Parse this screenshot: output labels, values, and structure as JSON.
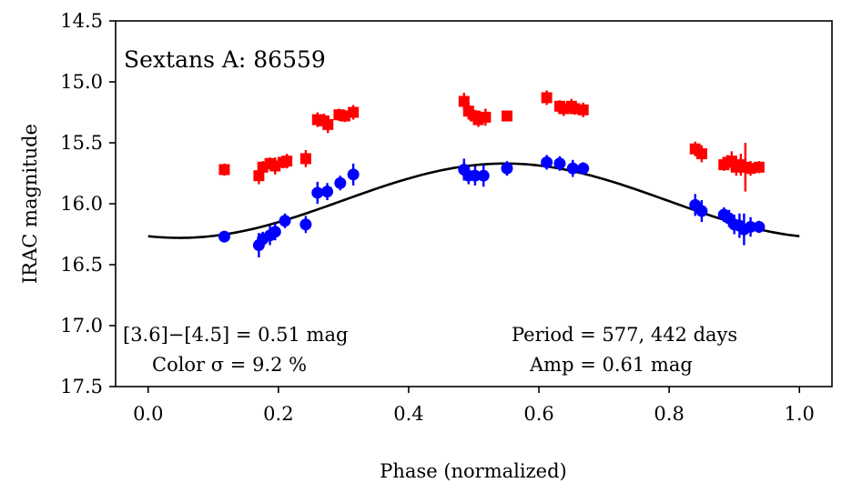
{
  "chart_data": {
    "type": "scatter",
    "title": "Sextans A: 86559",
    "xlabel": "Phase (normalized)",
    "ylabel": "IRAC magnitude",
    "xlim": [
      -0.05,
      1.05
    ],
    "ylim": [
      17.5,
      14.5
    ],
    "y_inverted": true,
    "grid": false,
    "xticks": [
      0.0,
      0.2,
      0.4,
      0.6,
      0.8,
      1.0
    ],
    "xtick_labels": [
      "0.0",
      "0.2",
      "0.4",
      "0.6",
      "0.8",
      "1.0"
    ],
    "yticks": [
      14.5,
      15.0,
      15.5,
      16.0,
      16.5,
      17.0,
      17.5
    ],
    "ytick_labels": [
      "14.5",
      "15.0",
      "15.5",
      "16.0",
      "16.5",
      "17.0",
      "17.5"
    ],
    "series": [
      {
        "name": "[3.6]",
        "color": "#ff0000",
        "marker": "square",
        "points": [
          {
            "x": 0.117,
            "y": 15.72,
            "err": 0.05
          },
          {
            "x": 0.17,
            "y": 15.77,
            "err": 0.07
          },
          {
            "x": 0.176,
            "y": 15.7,
            "err": 0.05
          },
          {
            "x": 0.187,
            "y": 15.67,
            "err": 0.05
          },
          {
            "x": 0.195,
            "y": 15.69,
            "err": 0.07
          },
          {
            "x": 0.207,
            "y": 15.66,
            "err": 0.05
          },
          {
            "x": 0.213,
            "y": 15.65,
            "err": 0.06
          },
          {
            "x": 0.242,
            "y": 15.63,
            "err": 0.07
          },
          {
            "x": 0.26,
            "y": 15.31,
            "err": 0.06
          },
          {
            "x": 0.27,
            "y": 15.32,
            "err": 0.06
          },
          {
            "x": 0.276,
            "y": 15.35,
            "err": 0.07
          },
          {
            "x": 0.293,
            "y": 15.27,
            "err": 0.05
          },
          {
            "x": 0.302,
            "y": 15.28,
            "err": 0.05
          },
          {
            "x": 0.315,
            "y": 15.25,
            "err": 0.06
          },
          {
            "x": 0.485,
            "y": 15.16,
            "err": 0.07
          },
          {
            "x": 0.492,
            "y": 15.24,
            "err": 0.07
          },
          {
            "x": 0.502,
            "y": 15.28,
            "err": 0.05
          },
          {
            "x": 0.507,
            "y": 15.31,
            "err": 0.06
          },
          {
            "x": 0.518,
            "y": 15.29,
            "err": 0.07
          },
          {
            "x": 0.551,
            "y": 15.28,
            "err": 0.04
          },
          {
            "x": 0.612,
            "y": 15.13,
            "err": 0.06
          },
          {
            "x": 0.632,
            "y": 15.2,
            "err": 0.05
          },
          {
            "x": 0.638,
            "y": 15.22,
            "err": 0.06
          },
          {
            "x": 0.65,
            "y": 15.2,
            "err": 0.06
          },
          {
            "x": 0.655,
            "y": 15.22,
            "err": 0.05
          },
          {
            "x": 0.668,
            "y": 15.23,
            "err": 0.06
          },
          {
            "x": 0.84,
            "y": 15.55,
            "err": 0.06
          },
          {
            "x": 0.85,
            "y": 15.59,
            "err": 0.07
          },
          {
            "x": 0.884,
            "y": 15.68,
            "err": 0.05
          },
          {
            "x": 0.89,
            "y": 15.66,
            "err": 0.06
          },
          {
            "x": 0.896,
            "y": 15.65,
            "err": 0.08
          },
          {
            "x": 0.903,
            "y": 15.7,
            "err": 0.07
          },
          {
            "x": 0.91,
            "y": 15.68,
            "err": 0.09
          },
          {
            "x": 0.917,
            "y": 15.7,
            "err": 0.2
          },
          {
            "x": 0.925,
            "y": 15.71,
            "err": 0.06
          },
          {
            "x": 0.938,
            "y": 15.7,
            "err": 0.05
          }
        ]
      },
      {
        "name": "[4.5]",
        "color": "#0000ff",
        "marker": "circle",
        "points": [
          {
            "x": 0.117,
            "y": 16.27,
            "err": 0.04
          },
          {
            "x": 0.17,
            "y": 16.34,
            "err": 0.1
          },
          {
            "x": 0.176,
            "y": 16.29,
            "err": 0.06
          },
          {
            "x": 0.187,
            "y": 16.26,
            "err": 0.08
          },
          {
            "x": 0.195,
            "y": 16.23,
            "err": 0.07
          },
          {
            "x": 0.21,
            "y": 16.14,
            "err": 0.06
          },
          {
            "x": 0.242,
            "y": 16.17,
            "err": 0.07
          },
          {
            "x": 0.26,
            "y": 15.91,
            "err": 0.09
          },
          {
            "x": 0.275,
            "y": 15.9,
            "err": 0.07
          },
          {
            "x": 0.295,
            "y": 15.83,
            "err": 0.06
          },
          {
            "x": 0.315,
            "y": 15.76,
            "err": 0.09
          },
          {
            "x": 0.485,
            "y": 15.72,
            "err": 0.09
          },
          {
            "x": 0.492,
            "y": 15.77,
            "err": 0.07
          },
          {
            "x": 0.502,
            "y": 15.77,
            "err": 0.08
          },
          {
            "x": 0.515,
            "y": 15.77,
            "err": 0.09
          },
          {
            "x": 0.551,
            "y": 15.71,
            "err": 0.06
          },
          {
            "x": 0.612,
            "y": 15.66,
            "err": 0.06
          },
          {
            "x": 0.632,
            "y": 15.67,
            "err": 0.06
          },
          {
            "x": 0.652,
            "y": 15.71,
            "err": 0.07
          },
          {
            "x": 0.668,
            "y": 15.71,
            "err": 0.05
          },
          {
            "x": 0.84,
            "y": 16.01,
            "err": 0.09
          },
          {
            "x": 0.85,
            "y": 16.06,
            "err": 0.09
          },
          {
            "x": 0.884,
            "y": 16.09,
            "err": 0.06
          },
          {
            "x": 0.892,
            "y": 16.12,
            "err": 0.07
          },
          {
            "x": 0.9,
            "y": 16.17,
            "err": 0.08
          },
          {
            "x": 0.908,
            "y": 16.18,
            "err": 0.1
          },
          {
            "x": 0.915,
            "y": 16.21,
            "err": 0.13
          },
          {
            "x": 0.925,
            "y": 16.19,
            "err": 0.08
          },
          {
            "x": 0.938,
            "y": 16.19,
            "err": 0.05
          }
        ]
      }
    ],
    "model_curve": {
      "type": "sinusoid",
      "color": "#000000",
      "mean": 15.975,
      "amplitude": 0.305,
      "peak_phase": 0.548,
      "x_range": [
        0.0,
        1.0
      ]
    },
    "annotations": {
      "color_diff": "[3.6]−[4.5] = 0.51 mag",
      "color_sigma": "Color σ = 9.2 %",
      "period": "Period = 577, 442 days",
      "amp": "Amp = 0.61 mag"
    }
  }
}
